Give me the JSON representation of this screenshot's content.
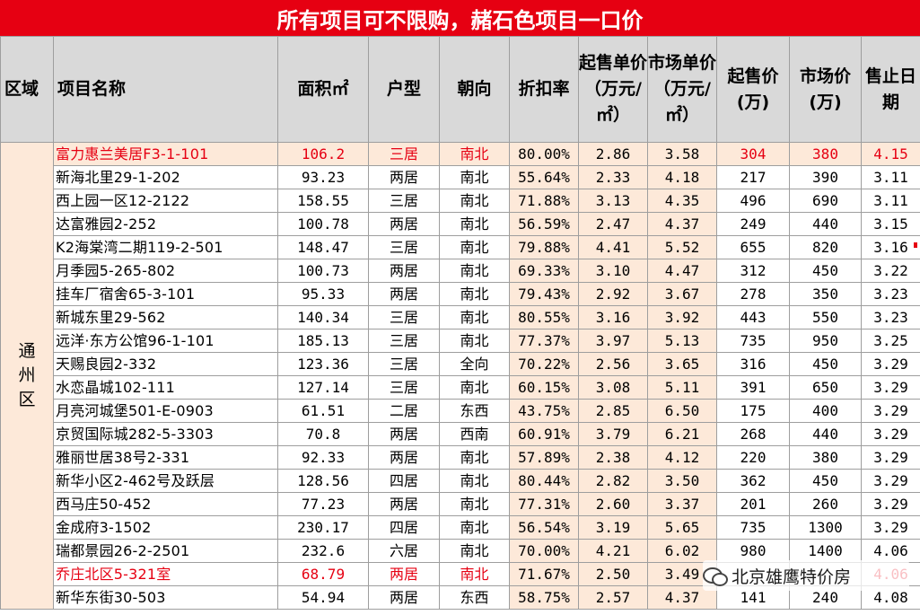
{
  "title": "所有项目可不限购，赭石色项目一口价",
  "headers": {
    "region": "区域",
    "name": "项目名称",
    "area": "面积㎡",
    "type": "户型",
    "dir": "朝向",
    "discount": "折扣率",
    "start_unit": "起售单价（万元/㎡）",
    "market_unit": "市场单价（万元/㎡）",
    "start_price": "起售价(万)",
    "market_price": "市场价(万)",
    "date": "售止日期"
  },
  "region_label": "通州区",
  "rows": [
    {
      "name": "富力惠兰美居F3-1-101",
      "area": "106.2",
      "type": "三居",
      "dir": "南北",
      "discount": "80.00%",
      "su": "2.86",
      "mu": "3.58",
      "sp": "304",
      "mp": "380",
      "date": "4.15",
      "hl": true,
      "first": true
    },
    {
      "name": "新海北里29-1-202",
      "area": "93.23",
      "type": "两居",
      "dir": "南北",
      "discount": "55.64%",
      "su": "2.33",
      "mu": "4.18",
      "sp": "217",
      "mp": "390",
      "date": "3.11"
    },
    {
      "name": "西上园一区12-2122",
      "area": "158.55",
      "type": "三居",
      "dir": "南北",
      "discount": "71.88%",
      "su": "3.13",
      "mu": "4.35",
      "sp": "496",
      "mp": "690",
      "date": "3.11"
    },
    {
      "name": "达富雅园2-252",
      "area": "100.78",
      "type": "两居",
      "dir": "南北",
      "discount": "56.59%",
      "su": "2.47",
      "mu": "4.37",
      "sp": "249",
      "mp": "440",
      "date": "3.15"
    },
    {
      "name": "K2海棠湾二期119-2-501",
      "area": "148.47",
      "type": "三居",
      "dir": "南北",
      "discount": "79.88%",
      "su": "4.41",
      "mu": "5.52",
      "sp": "655",
      "mp": "820",
      "date": "3.16"
    },
    {
      "name": "月季园5-265-802",
      "area": "100.73",
      "type": "两居",
      "dir": "南北",
      "discount": "69.33%",
      "su": "3.10",
      "mu": "4.47",
      "sp": "312",
      "mp": "450",
      "date": "3.22"
    },
    {
      "name": "挂车厂宿舍65-3-101",
      "area": "95.33",
      "type": "两居",
      "dir": "南北",
      "discount": "79.43%",
      "su": "2.92",
      "mu": "3.67",
      "sp": "278",
      "mp": "350",
      "date": "3.23"
    },
    {
      "name": "新城东里29-562",
      "area": "140.34",
      "type": "三居",
      "dir": "南北",
      "discount": "80.55%",
      "su": "3.16",
      "mu": "3.92",
      "sp": "443",
      "mp": "550",
      "date": "3.23"
    },
    {
      "name": "远洋·东方公馆96-1-101",
      "area": "185.13",
      "type": "三居",
      "dir": "南北",
      "discount": "77.37%",
      "su": "3.97",
      "mu": "5.13",
      "sp": "735",
      "mp": "950",
      "date": "3.25"
    },
    {
      "name": "天赐良园2-332",
      "area": "123.36",
      "type": "三居",
      "dir": "全向",
      "discount": "70.22%",
      "su": "2.56",
      "mu": "3.65",
      "sp": "316",
      "mp": "450",
      "date": "3.29"
    },
    {
      "name": "水恋晶城102-111",
      "area": "127.14",
      "type": "三居",
      "dir": "南北",
      "discount": "60.15%",
      "su": "3.08",
      "mu": "5.11",
      "sp": "391",
      "mp": "650",
      "date": "3.29"
    },
    {
      "name": "月亮河城堡501-E-0903",
      "area": "61.51",
      "type": "二居",
      "dir": "东西",
      "discount": "43.75%",
      "su": "2.85",
      "mu": "6.50",
      "sp": "175",
      "mp": "400",
      "date": "3.29"
    },
    {
      "name": "京贸国际城282-5-3303",
      "area": "70.8",
      "type": "两居",
      "dir": "西南",
      "discount": "60.91%",
      "su": "3.79",
      "mu": "6.21",
      "sp": "268",
      "mp": "440",
      "date": "3.29"
    },
    {
      "name": "雅丽世居38号2-331",
      "area": "92.33",
      "type": "两居",
      "dir": "南北",
      "discount": "57.89%",
      "su": "2.38",
      "mu": "4.12",
      "sp": "220",
      "mp": "380",
      "date": "3.29"
    },
    {
      "name": "新华小区2-462号及跃层",
      "area": "128.56",
      "type": "四居",
      "dir": "南北",
      "discount": "80.44%",
      "su": "2.82",
      "mu": "3.50",
      "sp": "362",
      "mp": "450",
      "date": "3.29"
    },
    {
      "name": "西马庄50-452",
      "area": "77.23",
      "type": "两居",
      "dir": "南北",
      "discount": "77.31%",
      "su": "2.60",
      "mu": "3.37",
      "sp": "201",
      "mp": "260",
      "date": "3.29"
    },
    {
      "name": "金成府3-1502",
      "area": "230.17",
      "type": "四居",
      "dir": "南北",
      "discount": "56.54%",
      "su": "3.19",
      "mu": "5.65",
      "sp": "735",
      "mp": "1300",
      "date": "3.29"
    },
    {
      "name": "瑞都景园26-2-2501",
      "area": "232.6",
      "type": "六居",
      "dir": "南北",
      "discount": "70.00%",
      "su": "4.21",
      "mu": "6.02",
      "sp": "980",
      "mp": "1400",
      "date": "4.06"
    },
    {
      "name": "乔庄北区5-321室",
      "area": "68.79",
      "type": "两居",
      "dir": "南北",
      "discount": "71.67%",
      "su": "2.50",
      "mu": "3.49",
      "sp": "",
      "mp": "",
      "date": "4.06",
      "hl": true
    },
    {
      "name": "新华东街30-503",
      "area": "54.94",
      "type": "两居",
      "dir": "东西",
      "discount": "58.75%",
      "su": "2.57",
      "mu": "4.37",
      "sp": "141",
      "mp": "240",
      "date": "4.08"
    }
  ],
  "watermark": "北京雄鹰特价房",
  "watermark_icon": "wechat-icon",
  "colors": {
    "title_bg": "#e60012",
    "header_bg": "#d9d9d9",
    "peach": "#fde9d9",
    "region_bg": "#dbe8f5",
    "highlight_text": "#e60012"
  }
}
